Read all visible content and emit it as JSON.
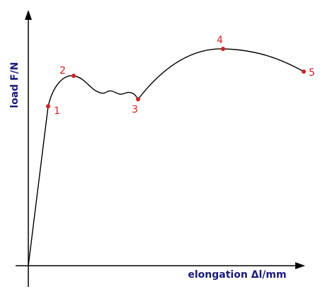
{
  "axes": {
    "y_label": "load F/N",
    "x_label": "elongation Δl/mm"
  },
  "points": [
    {
      "label": "1"
    },
    {
      "label": "2"
    },
    {
      "label": "3"
    },
    {
      "label": "4"
    },
    {
      "label": "5"
    }
  ]
}
